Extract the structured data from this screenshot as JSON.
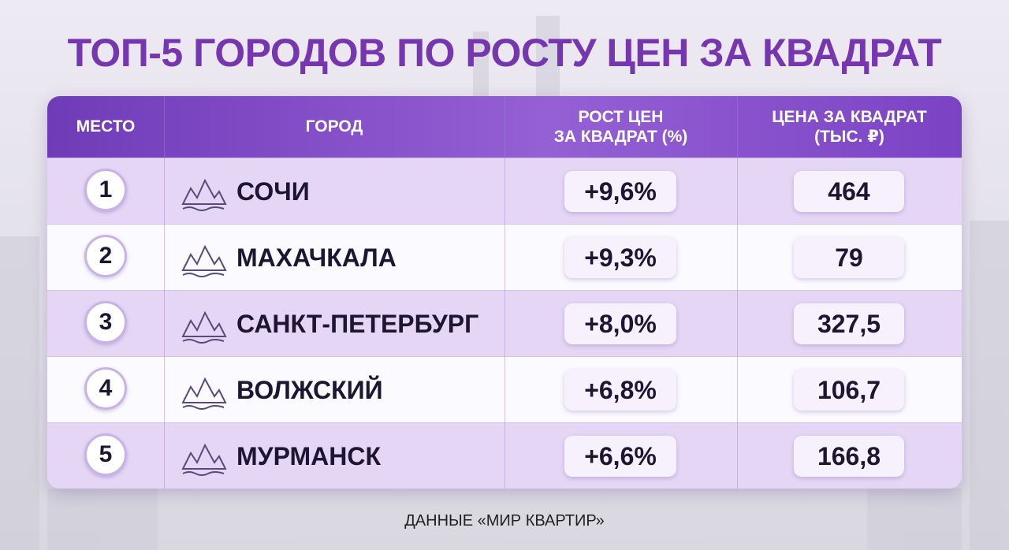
{
  "title": "ТОП-5 ГОРОДОВ ПО РОСТУ ЦЕН ЗА КВАДРАТ",
  "table": {
    "header": [
      "МЕСТО",
      "ГОРОД",
      "РОСТ ЦЕН\nЗА КВАДРАТ (%)",
      "ЦЕНА ЗА КВАДРАТ\n(ТЫС. ₽)"
    ],
    "rows": [
      [
        "1",
        "СОЧИ",
        "+9,6%",
        "464"
      ],
      [
        "2",
        "МАХАЧКАЛА",
        "+9,3%",
        "79"
      ],
      [
        "3",
        "САНКТ-ПЕТЕРБУРГ",
        "+8,0%",
        "327,5"
      ],
      [
        "4",
        "ВОЛЖСКИЙ",
        "+6,8%",
        "106,7"
      ],
      [
        "5",
        "МУРМАНСК",
        "+6,6%",
        "166,8"
      ]
    ]
  },
  "footer": "ДАННЫЕ «МИР КВАРТИР»"
}
